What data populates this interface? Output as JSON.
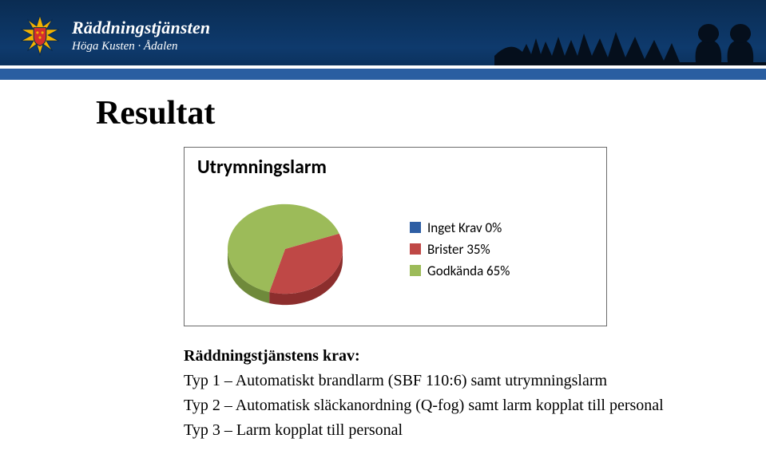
{
  "header": {
    "org_name": "Räddningstjänsten",
    "org_subtitle": "Höga Kusten · Ådalen",
    "bg_gradient_top": "#0a2c52",
    "bg_gradient_mid": "#0e3a6d",
    "stripe_blue": "#2a5ea1",
    "logo": {
      "star_fill": "#f2b200",
      "star_stroke": "#0a2c52",
      "shield_fill": "#d62f2b",
      "shield_stroke": "#0a2c52",
      "crowns_fill": "#f2b200"
    },
    "silhouette_color": "#050f1c"
  },
  "page": {
    "title": "Resultat"
  },
  "chart": {
    "type": "pie",
    "title": "Utrymningslarm",
    "title_fontsize": 24,
    "background_color": "#ffffff",
    "border_color": "#6b6b6b",
    "legend_fontsize": 17,
    "radius": 72,
    "perspective_scale_y": 0.78,
    "depth": 14,
    "series": [
      {
        "label": "Inget Krav 0%",
        "value": 0,
        "color": "#2e5ea4",
        "side_color": "#22447a"
      },
      {
        "label": "Brister 35%",
        "value": 35,
        "color": "#bf4846",
        "side_color": "#8c2e2d"
      },
      {
        "label": "Godkända 65%",
        "value": 65,
        "color": "#9cbb59",
        "side_color": "#6f8a3b"
      }
    ]
  },
  "krav": {
    "heading": "Räddningstjänstens krav:",
    "lines": [
      "Typ 1 – Automatiskt brandlarm (SBF 110:6) samt utrymningslarm",
      "Typ 2 – Automatisk släckanordning (Q-fog) samt larm kopplat till personal",
      "Typ 3 – Larm kopplat till personal"
    ]
  }
}
